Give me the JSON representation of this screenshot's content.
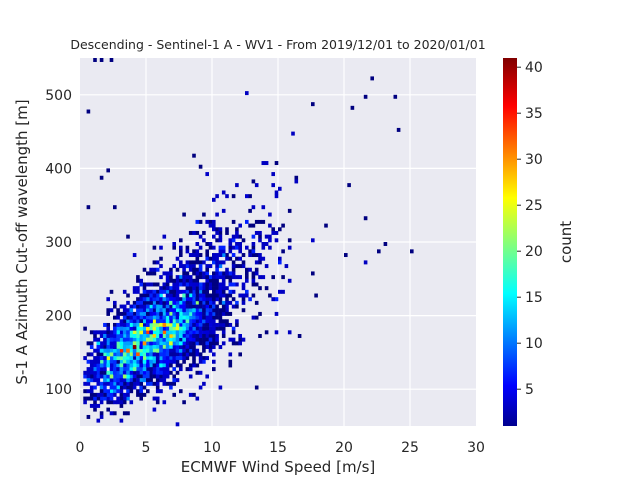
{
  "chart_data": {
    "type": "heatmap",
    "title": "Descending - Sentinel-1 A - WV1 - From 2019/12/01 to 2020/01/01",
    "xlabel": "ECMWF Wind Speed [m/s]",
    "ylabel": "S-1 A Azimuth Cut-off wavelength [m]",
    "xlim": [
      0,
      30
    ],
    "ylim": [
      50,
      550
    ],
    "xticks": [
      0,
      5,
      10,
      15,
      20,
      25,
      30
    ],
    "yticks": [
      100,
      200,
      300,
      400,
      500
    ],
    "grid": true,
    "bin_width_x": 0.25,
    "bin_width_y": 5,
    "colorbar": {
      "label": "count",
      "range": [
        1,
        41
      ],
      "ticks": [
        5,
        10,
        15,
        20,
        25,
        30,
        35,
        40
      ],
      "colormap": "jet"
    },
    "density": {
      "core_center": [
        6.5,
        175
      ],
      "core_peak_count": 41,
      "trend_points": [
        [
          1,
          125
        ],
        [
          3,
          145
        ],
        [
          5,
          170
        ],
        [
          7,
          190
        ],
        [
          10,
          230
        ],
        [
          13,
          270
        ],
        [
          16,
          305
        ],
        [
          20,
          340
        ]
      ],
      "outliers": [
        [
          1,
          548
        ],
        [
          1.5,
          548
        ],
        [
          2.25,
          548
        ],
        [
          0.5,
          475
        ],
        [
          22,
          522
        ],
        [
          23.75,
          498
        ],
        [
          21.5,
          495
        ],
        [
          20.5,
          480
        ],
        [
          17.5,
          485
        ],
        [
          2,
          398
        ],
        [
          1.5,
          385
        ],
        [
          24,
          450
        ],
        [
          22.5,
          285
        ],
        [
          20,
          282
        ],
        [
          18.5,
          320
        ],
        [
          25,
          285
        ],
        [
          23,
          295
        ],
        [
          21.5,
          330
        ],
        [
          8.5,
          415
        ],
        [
          9,
          400
        ],
        [
          12.5,
          360
        ],
        [
          17.5,
          255
        ],
        [
          3.5,
          305
        ],
        [
          0.5,
          345
        ],
        [
          2.5,
          345
        ]
      ]
    }
  }
}
